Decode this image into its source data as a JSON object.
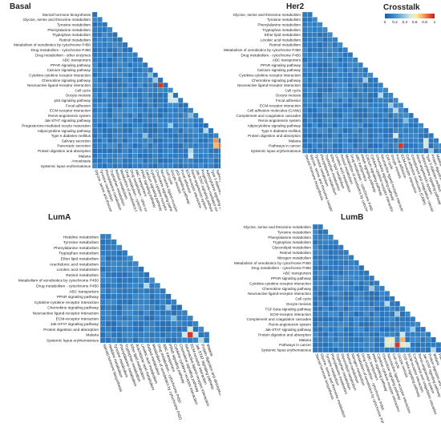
{
  "legend": {
    "title": "Crosstalk",
    "ticks": [
      "0",
      "0.2",
      "0.4",
      "0.6",
      "0.8",
      "1"
    ],
    "colors": [
      "#1f5fa8",
      "#2f7bbf",
      "#56a0d3",
      "#8fc3de",
      "#cfe6ea",
      "#f7efa6",
      "#f7b46a",
      "#e8603a",
      "#c41e1e"
    ]
  },
  "chart_data": [
    {
      "type": "heatmap",
      "title": "Basal",
      "labels": [
        "Steroid hormone biosynthesis",
        "Glycine, serine and threonine metabolism",
        "Tyrosine metabolism",
        "Phenylalanine metabolism",
        "Tryptophan metabolism",
        "Retinol metabolism",
        "Metabolism of xenobiotics by cytochrome P450",
        "Drug metabolism - cytochrome P450",
        "Drug metabolism - other enzymes",
        "ABC transporters",
        "PPAR signaling pathway",
        "Calcium signaling pathway",
        "Cytokine-cytokine receptor interaction",
        "Chemokine signaling pathway",
        "Neuroactive ligand-receptor interaction",
        "Cell cycle",
        "Oocyte meiosis",
        "p53 signaling pathway",
        "Focal adhesion",
        "ECM-receptor interaction",
        "Renin-angiotensin system",
        "Jak-STAT signaling pathway",
        "Progesterone-mediated oocyte maturation",
        "Adipocytokine signaling pathway",
        "Type II diabetes mellitus",
        "Salivary secretion",
        "Pancreatic secretion",
        "Protein digestion and absorption",
        "Malaria",
        "Amoebiasis",
        "Systemic lupus erythematosus"
      ],
      "xlabels": [
        "Glycine, serine and threonine metabolism",
        "Tyrosine metabolism",
        "Phenylalanine metabolism",
        "Tryptophan metabolism",
        "Retinol metabolism",
        "Metabolism of xenobiotics by cytochrome P450",
        "Drug metabolism - cytochrome P450",
        "Drug metabolism - other enzymes",
        "ABC transporters",
        "PPAR signaling pathway",
        "Calcium signaling pathway",
        "Cytokine-cytokine receptor interaction",
        "Chemokine signaling pathway",
        "Neuroactive ligand-receptor interaction",
        "Cell cycle",
        "Oocyte meiosis",
        "p53 signaling pathway",
        "Focal adhesion",
        "ECM-receptor interaction",
        "Renin-angiotensin system",
        "Jak-STAT signaling pathway",
        "Progesterone-mediated oocyte maturation",
        "Adipocytokine signaling pathway",
        "Type II diabetes mellitus",
        "Salivary secretion",
        "Pancreatic secretion",
        "Protein digestion and absorption",
        "Malaria",
        "Amoebiasis"
      ],
      "highlights": [
        [
          14,
          13,
          0.95
        ],
        [
          16,
          15,
          0.55
        ],
        [
          17,
          15,
          0.5
        ],
        [
          17,
          16,
          0.5
        ],
        [
          25,
          24,
          0.8
        ],
        [
          26,
          24,
          0.75
        ],
        [
          26,
          25,
          0.85
        ],
        [
          27,
          19,
          0.45
        ],
        [
          28,
          19,
          0.5
        ],
        [
          28,
          27,
          0.6
        ],
        [
          12,
          11,
          0.35
        ],
        [
          13,
          12,
          0.4
        ],
        [
          23,
          22,
          0.45
        ],
        [
          20,
          19,
          0.35
        ],
        [
          30,
          28,
          0.4
        ],
        [
          22,
          15,
          0.4
        ],
        [
          24,
          10,
          0.35
        ]
      ]
    },
    {
      "type": "heatmap",
      "title": "Her2",
      "labels": [
        "Glycine, serine and threonine metabolism",
        "Tyrosine metabolism",
        "Phenylalanine metabolism",
        "Tryptophan metabolism",
        "Ether lipid metabolism",
        "Linoleic acid metabolism",
        "Retinol metabolism",
        "Metabolism of xenobiotics by cytochrome P450",
        "Drug metabolism - cytochrome P450",
        "ABC transporters",
        "PPAR signaling pathway",
        "Calcium signaling pathway",
        "Cytokine-cytokine receptor interaction",
        "Chemokine signaling pathway",
        "Neuroactive ligand-receptor interaction",
        "Cell cycle",
        "Oocyte meiosis",
        "Focal adhesion",
        "ECM-receptor interaction",
        "Cell adhesion molecules (CAMs)",
        "Complement and coagulation cascades",
        "Renin-angiotensin system",
        "Adipocytokine signaling pathway",
        "Type II diabetes mellitus",
        "Protein digestion and absorption",
        "Malaria",
        "Pathways in cancer",
        "Systemic lupus erythematosus"
      ],
      "xlabels": [
        "Steroid hormone biosynthesis",
        "Glycine, serine and threonine metabolism",
        "Tyrosine metabolism",
        "Phenylalanine metabolism",
        "Tryptophan metabolism",
        "Ether lipid metabolism",
        "Linoleic acid metabolism",
        "Retinol metabolism",
        "Metabolism of xenobiotics by cytochrome P450",
        "Drug metabolism - cytochrome P450",
        "ABC transporters",
        "PPAR signaling pathway",
        "Calcium signaling pathway",
        "Cytokine-cytokine receptor interaction",
        "Chemokine signaling pathway",
        "Neuroactive ligand-receptor interaction",
        "Cell cycle",
        "Oocyte meiosis",
        "Focal adhesion",
        "ECM-receptor interaction",
        "Cell adhesion molecules (CAMs)",
        "Complement and coagulation cascades",
        "Renin-angiotensin system",
        "Adipocytokine signaling pathway",
        "Type II diabetes mellitus",
        "Protein digestion and absorption",
        "Malaria",
        "Pathways in cancer"
      ],
      "highlights": [
        [
          16,
          15,
          0.45
        ],
        [
          18,
          17,
          0.4
        ],
        [
          19,
          18,
          0.45
        ],
        [
          24,
          18,
          0.5
        ],
        [
          25,
          24,
          0.5
        ],
        [
          26,
          19,
          0.95
        ],
        [
          26,
          24,
          0.5
        ],
        [
          13,
          12,
          0.4
        ],
        [
          21,
          20,
          0.35
        ],
        [
          27,
          25,
          0.4
        ]
      ]
    },
    {
      "type": "heatmap",
      "title": "LumA",
      "labels": [
        "Histidine metabolism",
        "Tyrosine metabolism",
        "Phenylalanine metabolism",
        "Tryptophan metabolism",
        "Ether lipid metabolism",
        "Arachidonic acid metabolism",
        "Linoleic acid metabolism",
        "Retinol metabolism",
        "Metabolism of xenobiotics by cytochrome P450",
        "Drug metabolism - cytochrome P450",
        "ABC transporters",
        "PPAR signaling pathway",
        "Cytokine-cytokine receptor interaction",
        "Chemokine signaling pathway",
        "Neuroactive ligand-receptor interaction",
        "ECM-receptor interaction",
        "Jak-STAT signaling pathway",
        "Protein digestion and absorption",
        "Malaria",
        "Systemic lupus erythematosus"
      ],
      "xlabels": [
        "Steroid hormone biosynthesis",
        "Histidine metabolism",
        "Tyrosine metabolism",
        "Phenylalanine metabolism",
        "Tryptophan metabolism",
        "Ether lipid metabolism",
        "Arachidonic acid metabolism",
        "Linoleic acid metabolism",
        "Retinol metabolism",
        "Metabolism of xenobiotics by cytochrome P450",
        "Drug metabolism - cytochrome P450",
        "ABC transporters",
        "PPAR signaling pathway",
        "Cytokine-cytokine receptor interaction",
        "Chemokine signaling pathway",
        "Neuroactive ligand-receptor interaction",
        "ECM-receptor interaction",
        "Jak-STAT signaling pathway",
        "Protein digestion and absorption",
        "Malaria"
      ],
      "highlights": [
        [
          9,
          8,
          0.45
        ],
        [
          15,
          13,
          0.35
        ],
        [
          17,
          16,
          0.55
        ],
        [
          18,
          15,
          0.5
        ],
        [
          18,
          16,
          0.95
        ],
        [
          18,
          17,
          0.5
        ],
        [
          19,
          18,
          0.45
        ],
        [
          13,
          12,
          0.4
        ]
      ]
    },
    {
      "type": "heatmap",
      "title": "LumB",
      "labels": [
        "Glycine, serine and threonine metabolism",
        "Tyrosine metabolism",
        "Phenylalanine metabolism",
        "Tryptophan metabolism",
        "Glycerolipid metabolism",
        "Retinol metabolism",
        "Nitrogen metabolism",
        "Metabolism of xenobiotics by cytochrome P450",
        "Drug metabolism - cytochrome P450",
        "ABC transporters",
        "PPAR signaling pathway",
        "Cytokine-cytokine receptor interaction",
        "Chemokine signaling pathway",
        "Neuroactive ligand-receptor interaction",
        "Cell cycle",
        "Oocyte meiosis",
        "TGF-beta signaling pathway",
        "ECM-receptor interaction",
        "Complement and coagulation cascades",
        "Renin-angiotensin system",
        "Jak-STAT signaling pathway",
        "Protein digestion and absorption",
        "Malaria",
        "Pathways in cancer",
        "Systemic lupus erythematosus"
      ],
      "xlabels": [
        "Steroid hormone biosynthesis",
        "Glycine, serine and threonine metabolism",
        "Tyrosine metabolism",
        "Phenylalanine metabolism",
        "Tryptophan metabolism",
        "Glycerolipid metabolism",
        "Retinol metabolism",
        "Nitrogen metabolism",
        "Metabolism of xenobiotics by cytochrome P450",
        "Drug metabolism - cytochrome P450",
        "ABC transporters",
        "PPAR signaling pathway",
        "Cytokine-cytokine receptor interaction",
        "Chemokine signaling pathway",
        "Neuroactive ligand-receptor interaction",
        "Cell cycle",
        "Oocyte meiosis",
        "TGF-beta signaling pathway",
        "ECM-receptor interaction",
        "Complement and coagulation cascades",
        "Renin-angiotensin system",
        "Jak-STAT signaling pathway",
        "Protein digestion and absorption",
        "Malaria",
        "Pathways in cancer"
      ],
      "highlights": [
        [
          15,
          14,
          0.45
        ],
        [
          17,
          16,
          0.4
        ],
        [
          21,
          17,
          0.5
        ],
        [
          22,
          14,
          0.55
        ],
        [
          22,
          15,
          0.6
        ],
        [
          22,
          17,
          0.75
        ],
        [
          23,
          14,
          0.55
        ],
        [
          23,
          15,
          0.5
        ],
        [
          23,
          16,
          0.95
        ],
        [
          23,
          17,
          0.55
        ],
        [
          23,
          18,
          0.5
        ],
        [
          24,
          23,
          0.45
        ],
        [
          12,
          11,
          0.4
        ],
        [
          20,
          19,
          0.4
        ]
      ]
    }
  ]
}
